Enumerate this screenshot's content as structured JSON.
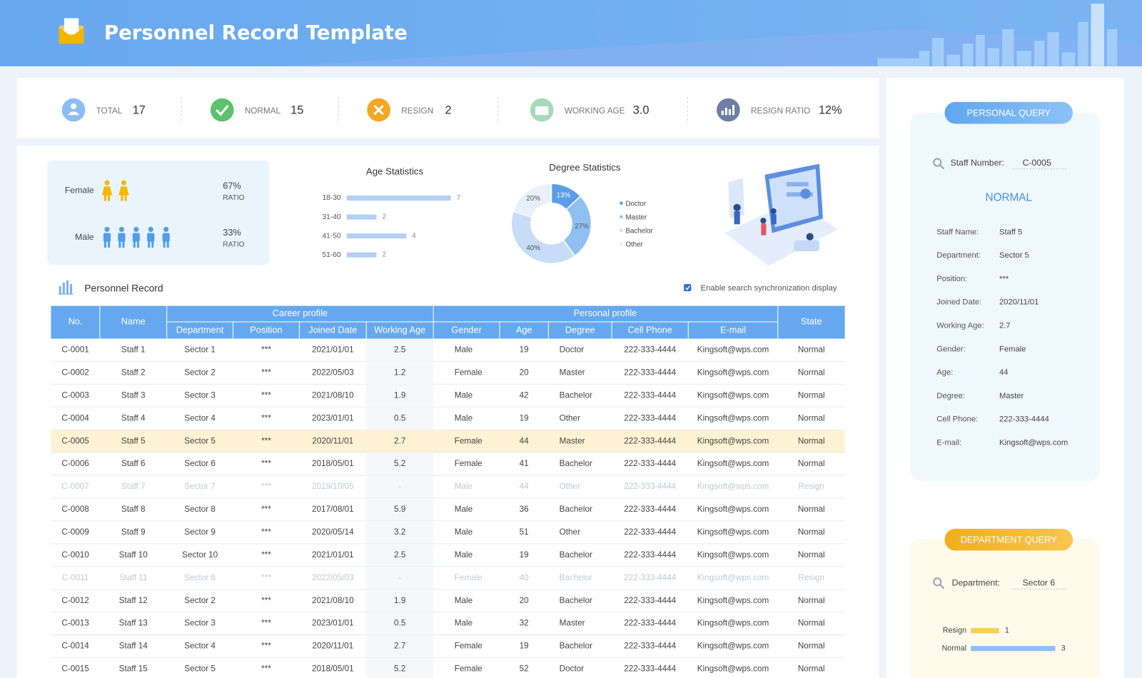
{
  "header": {
    "title": "Personnel Record Template"
  },
  "summary": [
    {
      "label": "TOTAL",
      "value": 17
    },
    {
      "label": "NORMAL",
      "value": 15
    },
    {
      "label": "RESIGN",
      "value": 2
    },
    {
      "label": "WORKING AGE",
      "value": 3,
      "value_label": "3.0"
    },
    {
      "label": "RESIGN RATIO",
      "value": 12,
      "value_label": "12%"
    }
  ],
  "gender_ratio": {
    "categories": [
      "Female",
      "Male"
    ],
    "values": [
      67,
      33
    ],
    "value_labels": [
      "67%",
      "33%"
    ],
    "caption": "RATIO",
    "colors": [
      "#f5b800",
      "#4f9fe8"
    ]
  },
  "age_statistics": {
    "title": "Age Statistics",
    "categories": [
      "18-30",
      "31-40",
      "41-50",
      "51-60"
    ],
    "values": [
      7,
      2,
      4,
      2
    ],
    "color": "#b3d0f4"
  },
  "degree_statistics": {
    "title": "Degree Statistics",
    "categories": [
      "Doctor",
      "Master",
      "Bachelor",
      "Other"
    ],
    "values": [
      13,
      27,
      40,
      20
    ],
    "value_labels": [
      "13%",
      "27%",
      "40%",
      "20%"
    ],
    "colors": [
      "#5b9ee8",
      "#8fc0f2",
      "#c7ddf7",
      "#e7f0fb"
    ]
  },
  "record": {
    "title": "Personnel Record",
    "sync_option": "Enable search synchronization display",
    "groups": [
      "Career profile",
      "Personal profile"
    ],
    "columns": [
      "No.",
      "Name",
      "Department",
      "Position",
      "Joined Date",
      "Working Age",
      "Gender",
      "Age",
      "Degree",
      "Cell Phone",
      "E-mail",
      "State"
    ],
    "rows": [
      [
        "C-0001",
        "Staff 1",
        "Sector 1",
        "***",
        "2021/01/01",
        2.5,
        "Male",
        19,
        "Doctor",
        "222-333-4444",
        "Kingsoft@wps.com",
        "Normal"
      ],
      [
        "C-0002",
        "Staff 2",
        "Sector 2",
        "***",
        "2022/05/03",
        1.2,
        "Female",
        20,
        "Master",
        "222-333-4444",
        "Kingsoft@wps.com",
        "Normal"
      ],
      [
        "C-0003",
        "Staff 3",
        "Sector 3",
        "***",
        "2021/08/10",
        1.9,
        "Male",
        42,
        "Bachelor",
        "222-333-4444",
        "Kingsoft@wps.com",
        "Normal"
      ],
      [
        "C-0004",
        "Staff 4",
        "Sector 4",
        "***",
        "2023/01/01",
        0.5,
        "Male",
        19,
        "Other",
        "222-333-4444",
        "Kingsoft@wps.com",
        "Normal"
      ],
      [
        "C-0005",
        "Staff 5",
        "Sector 5",
        "***",
        "2020/11/01",
        2.7,
        "Female",
        44,
        "Master",
        "222-333-4444",
        "Kingsoft@wps.com",
        "Normal"
      ],
      [
        "C-0006",
        "Staff 6",
        "Sector 6",
        "***",
        "2018/05/01",
        5.2,
        "Female",
        41,
        "Bachelor",
        "222-333-4444",
        "Kingsoft@wps.com",
        "Normal"
      ],
      [
        "C-0007",
        "Staff 7",
        "Sector 7",
        "***",
        "2019/10/05",
        "-",
        "Male",
        44,
        "Other",
        "222-333-4444",
        "Kingsoft@wps.com",
        "Resign"
      ],
      [
        "C-0008",
        "Staff 8",
        "Sector 8",
        "***",
        "2017/08/01",
        5.9,
        "Male",
        36,
        "Bachelor",
        "222-333-4444",
        "Kingsoft@wps.com",
        "Normal"
      ],
      [
        "C-0009",
        "Staff 9",
        "Sector 9",
        "***",
        "2020/05/14",
        3.2,
        "Male",
        51,
        "Other",
        "222-333-4444",
        "Kingsoft@wps.com",
        "Normal"
      ],
      [
        "C-0010",
        "Staff 10",
        "Sector 10",
        "***",
        "2021/01/01",
        2.5,
        "Male",
        19,
        "Bachelor",
        "222-333-4444",
        "Kingsoft@wps.com",
        "Normal"
      ],
      [
        "C-0011",
        "Staff 11",
        "Sector 6",
        "***",
        "2022/05/03",
        "-",
        "Female",
        40,
        "Bachelor",
        "222-333-4444",
        "Kingsoft@wps.com",
        "Resign"
      ],
      [
        "C-0012",
        "Staff 12",
        "Sector 2",
        "***",
        "2021/08/10",
        1.9,
        "Male",
        20,
        "Bachelor",
        "222-333-4444",
        "Kingsoft@wps.com",
        "Normal"
      ],
      [
        "C-0013",
        "Staff 13",
        "Sector 3",
        "***",
        "2023/01/01",
        0.5,
        "Male",
        32,
        "Master",
        "222-333-4444",
        "Kingsoft@wps.com",
        "Normal"
      ],
      [
        "C-0014",
        "Staff 14",
        "Sector 4",
        "***",
        "2020/11/01",
        2.7,
        "Female",
        19,
        "Bachelor",
        "222-333-4444",
        "Kingsoft@wps.com",
        "Normal"
      ],
      [
        "C-0015",
        "Staff 15",
        "Sector 5",
        "***",
        "2018/05/01",
        5.2,
        "Female",
        52,
        "Doctor",
        "222-333-4444",
        "Kingsoft@wps.com",
        "Normal"
      ]
    ]
  },
  "personal_query": {
    "title": "PERSONAL QUERY",
    "search_label": "Staff Number:",
    "search_value": "C-0005",
    "status": "NORMAL",
    "fields": [
      {
        "label": "Staff Name:",
        "value": "Staff 5"
      },
      {
        "label": "Department:",
        "value": "Sector 5"
      },
      {
        "label": "Position:",
        "value": "***"
      },
      {
        "label": "Joined Date:",
        "value": "2020/11/01"
      },
      {
        "label": "Working Age:",
        "value": 2.7
      },
      {
        "label": "Gender:",
        "value": "Female"
      },
      {
        "label": "Age:",
        "value": 44
      },
      {
        "label": "Degree:",
        "value": "Master"
      },
      {
        "label": "Cell Phone:",
        "value": "222-333-4444"
      },
      {
        "label": "E-mail:",
        "value": "Kingsoft@wps.com"
      }
    ]
  },
  "department_query": {
    "title": "DEPARTMENT QUERY",
    "search_label": "Department:",
    "search_value": "Sector 6",
    "categories": [
      "Resign",
      "Normal"
    ],
    "values": [
      1,
      3
    ],
    "colors": [
      "#f5cf5a",
      "#8ec0f2"
    ]
  }
}
